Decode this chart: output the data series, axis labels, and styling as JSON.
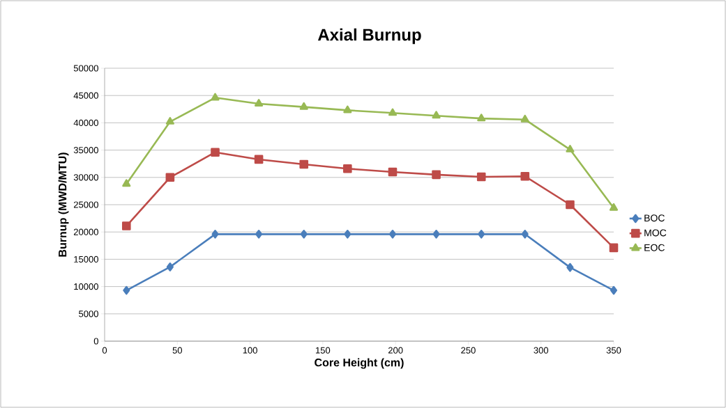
{
  "chart_data": {
    "type": "line",
    "title": "Axial Burnup",
    "xlabel": "Core Height (cm)",
    "ylabel": "Burnup (MWD/MTU)",
    "x": [
      15,
      45,
      76,
      106,
      137,
      167,
      198,
      228,
      259,
      289,
      320,
      350
    ],
    "series": [
      {
        "name": "BOC",
        "color": "#4a7ebb",
        "marker": "diamond",
        "values": [
          9300,
          13600,
          19600,
          19600,
          19600,
          19600,
          19600,
          19600,
          19600,
          19600,
          13500,
          9300
        ]
      },
      {
        "name": "MOC",
        "color": "#be4b48",
        "marker": "square",
        "values": [
          21100,
          30000,
          34600,
          33300,
          32400,
          31600,
          31000,
          30500,
          30100,
          30200,
          25000,
          17100
        ]
      },
      {
        "name": "EOC",
        "color": "#98b954",
        "marker": "triangle",
        "values": [
          28800,
          40200,
          44600,
          43500,
          42900,
          42300,
          41800,
          41300,
          40800,
          40600,
          35100,
          24400
        ]
      }
    ],
    "xlim": [
      0,
      350
    ],
    "xticks": [
      0,
      50,
      100,
      150,
      200,
      250,
      300,
      350
    ],
    "ylim": [
      0,
      50000
    ],
    "yticks": [
      0,
      5000,
      10000,
      15000,
      20000,
      25000,
      30000,
      35000,
      40000,
      45000,
      50000
    ],
    "grid": "y",
    "legend": "right",
    "line_style": "solid"
  }
}
